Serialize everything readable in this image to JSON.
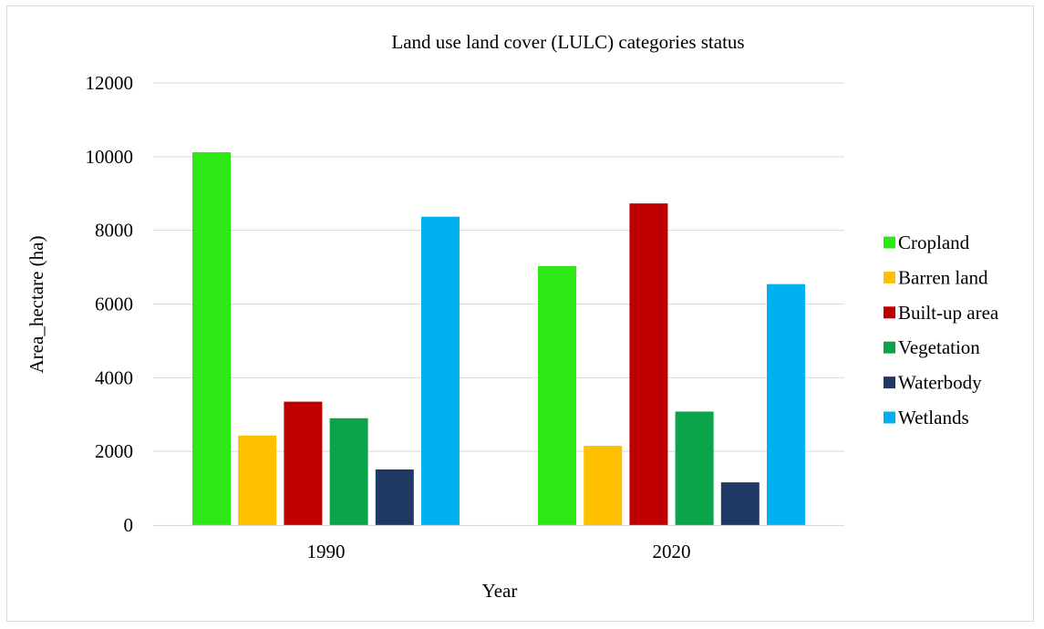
{
  "chart_data": {
    "type": "bar",
    "title": "Land use land cover (LULC) categories status",
    "xlabel": "Year",
    "ylabel": "Area_hectare (ha)",
    "categories": [
      "1990",
      "2020"
    ],
    "ylim": [
      0,
      12000
    ],
    "yticks": [
      0,
      2000,
      4000,
      6000,
      8000,
      10000,
      12000
    ],
    "ytick_labels": [
      "0",
      "2000",
      "4000",
      "6000",
      "8000",
      "10000",
      "12000"
    ],
    "grid": true,
    "legend_position": "right",
    "series": [
      {
        "name": "Cropland",
        "color": "#2ee815",
        "values": [
          10120,
          7030
        ]
      },
      {
        "name": "Barren land",
        "color": "#ffc000",
        "values": [
          2430,
          2150
        ]
      },
      {
        "name": "Built-up area",
        "color": "#c00000",
        "values": [
          3350,
          8730
        ]
      },
      {
        "name": "Vegetation",
        "color": "#0ba44a",
        "values": [
          2900,
          3080
        ]
      },
      {
        "name": "Waterbody",
        "color": "#1f3864",
        "values": [
          1510,
          1160
        ]
      },
      {
        "name": "Wetlands",
        "color": "#00b0f0",
        "values": [
          8370,
          6540
        ]
      }
    ]
  }
}
